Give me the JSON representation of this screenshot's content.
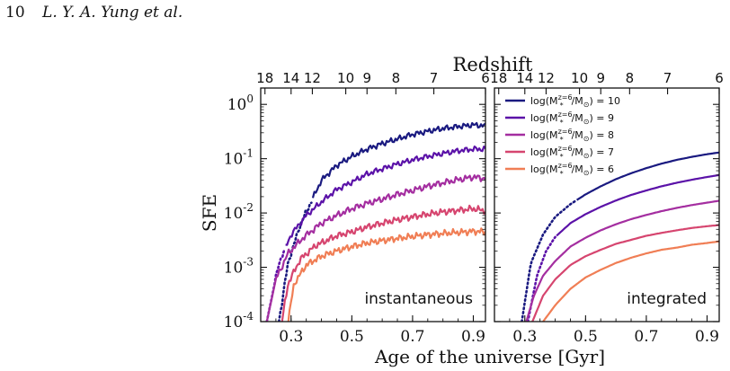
{
  "header": {
    "page_number": "10",
    "authors": "L. Y. A. Yung et al."
  },
  "chart_data": {
    "type": "line",
    "xlabel": "Age of the universe [Gyr]",
    "ylabel": "SFE",
    "top_axis_label": "Redshift",
    "y_scale": "log",
    "xlim": [
      0.2,
      0.94
    ],
    "ylim": [
      0.0001,
      2
    ],
    "x_ticks": [
      0.3,
      0.5,
      0.7,
      0.9
    ],
    "x_tick_labels": [
      "0.3",
      "0.5",
      "0.7",
      "0.9"
    ],
    "y_ticks": [
      0.0001,
      0.001,
      0.01,
      0.1,
      1
    ],
    "y_tick_labels": [
      "10^-4",
      "10^-3",
      "10^-2",
      "10^-1",
      "10^0"
    ],
    "redshift_ticks": [
      {
        "z": 18,
        "t": 0.214
      },
      {
        "z": 14,
        "t": 0.3
      },
      {
        "z": 12,
        "t": 0.37
      },
      {
        "z": 10,
        "t": 0.48
      },
      {
        "z": 9,
        "t": 0.55
      },
      {
        "z": 8,
        "t": 0.645
      },
      {
        "z": 7,
        "t": 0.77
      },
      {
        "z": 6,
        "t": 0.94
      }
    ],
    "legend": {
      "placement": "top-right of right panel",
      "entries": [
        {
          "prefix": "log(M",
          "suffix": "/M",
          "tail": ") = 10",
          "color": "#1a1a80"
        },
        {
          "prefix": "log(M",
          "suffix": "/M",
          "tail": ") = 9",
          "color": "#5b12a8"
        },
        {
          "prefix": "log(M",
          "suffix": "/M",
          "tail": ") = 8",
          "color": "#a42ea0"
        },
        {
          "prefix": "log(M",
          "suffix": "/M",
          "tail": ") = 7",
          "color": "#d6456f"
        },
        {
          "prefix": "log(M",
          "suffix": "/M",
          "tail": ") = 6",
          "color": "#f07e55"
        }
      ],
      "sup_text": "z=6",
      "sub_text": "*",
      "sun_sub": "⊙"
    },
    "panels": [
      {
        "label": "instantaneous",
        "series": [
          {
            "color": "#1a1a80",
            "solid_start": 0.37,
            "noise": 0.06,
            "points": [
              [
                0.26,
                0.0001
              ],
              [
                0.29,
                0.0012
              ],
              [
                0.33,
                0.006
              ],
              [
                0.37,
                0.018
              ],
              [
                0.4,
                0.04
              ],
              [
                0.45,
                0.075
              ],
              [
                0.5,
                0.11
              ],
              [
                0.55,
                0.15
              ],
              [
                0.6,
                0.19
              ],
              [
                0.65,
                0.23
              ],
              [
                0.7,
                0.28
              ],
              [
                0.75,
                0.32
              ],
              [
                0.8,
                0.36
              ],
              [
                0.85,
                0.39
              ],
              [
                0.9,
                0.42
              ],
              [
                0.94,
                0.4
              ]
            ]
          },
          {
            "color": "#5b12a8",
            "solid_start": 0.28,
            "noise": 0.06,
            "points": [
              [
                0.22,
                0.0001
              ],
              [
                0.26,
                0.0012
              ],
              [
                0.3,
                0.004
              ],
              [
                0.35,
                0.009
              ],
              [
                0.4,
                0.016
              ],
              [
                0.45,
                0.027
              ],
              [
                0.5,
                0.037
              ],
              [
                0.55,
                0.052
              ],
              [
                0.6,
                0.065
              ],
              [
                0.65,
                0.08
              ],
              [
                0.7,
                0.095
              ],
              [
                0.75,
                0.11
              ],
              [
                0.8,
                0.125
              ],
              [
                0.85,
                0.14
              ],
              [
                0.9,
                0.15
              ],
              [
                0.94,
                0.15
              ]
            ]
          },
          {
            "color": "#a42ea0",
            "solid_start": 0.22,
            "noise": 0.07,
            "points": [
              [
                0.22,
                0.0001
              ],
              [
                0.25,
                0.0006
              ],
              [
                0.29,
                0.0018
              ],
              [
                0.34,
                0.0035
              ],
              [
                0.4,
                0.0065
              ],
              [
                0.45,
                0.009
              ],
              [
                0.5,
                0.012
              ],
              [
                0.55,
                0.015
              ],
              [
                0.6,
                0.018
              ],
              [
                0.65,
                0.022
              ],
              [
                0.7,
                0.026
              ],
              [
                0.75,
                0.031
              ],
              [
                0.8,
                0.036
              ],
              [
                0.85,
                0.041
              ],
              [
                0.9,
                0.046
              ],
              [
                0.94,
                0.043
              ]
            ]
          },
          {
            "color": "#d6456f",
            "solid_start": 0.27,
            "noise": 0.07,
            "points": [
              [
                0.27,
                0.0001
              ],
              [
                0.29,
                0.0005
              ],
              [
                0.33,
                0.0014
              ],
              [
                0.38,
                0.0025
              ],
              [
                0.45,
                0.0038
              ],
              [
                0.5,
                0.0045
              ],
              [
                0.55,
                0.0055
              ],
              [
                0.6,
                0.0065
              ],
              [
                0.65,
                0.0075
              ],
              [
                0.7,
                0.0085
              ],
              [
                0.75,
                0.0095
              ],
              [
                0.8,
                0.0105
              ],
              [
                0.85,
                0.0112
              ],
              [
                0.9,
                0.012
              ],
              [
                0.94,
                0.011
              ]
            ]
          },
          {
            "color": "#f07e55",
            "solid_start": 0.29,
            "noise": 0.07,
            "points": [
              [
                0.29,
                0.0001
              ],
              [
                0.31,
                0.0005
              ],
              [
                0.35,
                0.0011
              ],
              [
                0.4,
                0.0016
              ],
              [
                0.45,
                0.002
              ],
              [
                0.5,
                0.0024
              ],
              [
                0.55,
                0.0028
              ],
              [
                0.6,
                0.0031
              ],
              [
                0.65,
                0.0034
              ],
              [
                0.7,
                0.0037
              ],
              [
                0.75,
                0.004
              ],
              [
                0.8,
                0.0042
              ],
              [
                0.85,
                0.0044
              ],
              [
                0.9,
                0.0046
              ],
              [
                0.94,
                0.0045
              ]
            ]
          }
        ]
      },
      {
        "label": "integrated",
        "series": [
          {
            "color": "#1a1a80",
            "solid_start": 0.47,
            "noise": 0,
            "points": [
              [
                0.29,
                0.0001
              ],
              [
                0.32,
                0.0012
              ],
              [
                0.36,
                0.004
              ],
              [
                0.4,
                0.0085
              ],
              [
                0.45,
                0.0145
              ],
              [
                0.5,
                0.022
              ],
              [
                0.55,
                0.031
              ],
              [
                0.6,
                0.042
              ],
              [
                0.65,
                0.054
              ],
              [
                0.7,
                0.067
              ],
              [
                0.75,
                0.081
              ],
              [
                0.8,
                0.095
              ],
              [
                0.85,
                0.108
              ],
              [
                0.9,
                0.121
              ],
              [
                0.94,
                0.13
              ]
            ]
          },
          {
            "color": "#5b12a8",
            "solid_start": 0.4,
            "noise": 0,
            "points": [
              [
                0.31,
                0.0001
              ],
              [
                0.34,
                0.0007
              ],
              [
                0.37,
                0.002
              ],
              [
                0.4,
                0.0036
              ],
              [
                0.45,
                0.0065
              ],
              [
                0.5,
                0.0095
              ],
              [
                0.55,
                0.013
              ],
              [
                0.6,
                0.017
              ],
              [
                0.65,
                0.0215
              ],
              [
                0.7,
                0.026
              ],
              [
                0.75,
                0.031
              ],
              [
                0.8,
                0.036
              ],
              [
                0.85,
                0.041
              ],
              [
                0.9,
                0.046
              ],
              [
                0.94,
                0.05
              ]
            ]
          },
          {
            "color": "#a42ea0",
            "solid_start": 0.3,
            "noise": 0,
            "points": [
              [
                0.305,
                0.0001
              ],
              [
                0.33,
                0.0003
              ],
              [
                0.36,
                0.0007
              ],
              [
                0.4,
                0.0013
              ],
              [
                0.45,
                0.0024
              ],
              [
                0.5,
                0.0035
              ],
              [
                0.55,
                0.0048
              ],
              [
                0.6,
                0.0062
              ],
              [
                0.65,
                0.0077
              ],
              [
                0.7,
                0.0092
              ],
              [
                0.75,
                0.0108
              ],
              [
                0.8,
                0.0124
              ],
              [
                0.85,
                0.014
              ],
              [
                0.9,
                0.0155
              ],
              [
                0.94,
                0.0168
              ]
            ]
          },
          {
            "color": "#d6456f",
            "solid_start": 0.32,
            "noise": 0,
            "points": [
              [
                0.325,
                0.0001
              ],
              [
                0.36,
                0.0003
              ],
              [
                0.4,
                0.0006
              ],
              [
                0.45,
                0.0011
              ],
              [
                0.5,
                0.0016
              ],
              [
                0.55,
                0.0021
              ],
              [
                0.6,
                0.0027
              ],
              [
                0.65,
                0.0032
              ],
              [
                0.7,
                0.0038
              ],
              [
                0.75,
                0.0043
              ],
              [
                0.8,
                0.0048
              ],
              [
                0.85,
                0.0053
              ],
              [
                0.9,
                0.0057
              ],
              [
                0.94,
                0.006
              ]
            ]
          },
          {
            "color": "#f07e55",
            "solid_start": 0.36,
            "noise": 0,
            "points": [
              [
                0.36,
                0.0001
              ],
              [
                0.4,
                0.0002
              ],
              [
                0.45,
                0.0004
              ],
              [
                0.5,
                0.00065
              ],
              [
                0.55,
                0.0009
              ],
              [
                0.6,
                0.0012
              ],
              [
                0.65,
                0.0015
              ],
              [
                0.7,
                0.0018
              ],
              [
                0.75,
                0.0021
              ],
              [
                0.8,
                0.0023
              ],
              [
                0.85,
                0.0026
              ],
              [
                0.9,
                0.0028
              ],
              [
                0.94,
                0.003
              ]
            ]
          }
        ]
      }
    ]
  }
}
